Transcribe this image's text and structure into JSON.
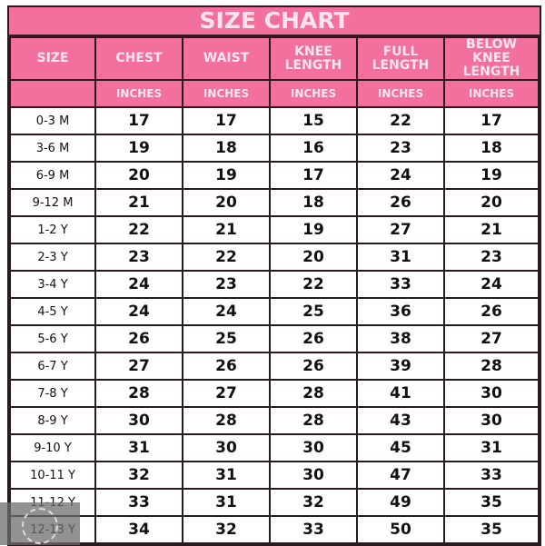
{
  "title": "SIZE CHART",
  "headers": [
    "SIZE",
    "CHEST",
    "WAIST",
    "KNEE LENGTH",
    "FULL LENGTH",
    "BELOW KNEE LENGTH"
  ],
  "units": [
    "",
    "INCHES",
    "INCHES",
    "INCHES",
    "INCHES",
    "INCHES"
  ],
  "rows": [
    [
      "0-3 M",
      "17",
      "17",
      "15",
      "22",
      "17"
    ],
    [
      "3-6 M",
      "19",
      "18",
      "16",
      "23",
      "18"
    ],
    [
      "6-9 M",
      "20",
      "19",
      "17",
      "24",
      "19"
    ],
    [
      "9-12 M",
      "21",
      "20",
      "18",
      "26",
      "20"
    ],
    [
      "1-2 Y",
      "22",
      "21",
      "19",
      "27",
      "21"
    ],
    [
      "2-3 Y",
      "23",
      "22",
      "20",
      "31",
      "23"
    ],
    [
      "3-4 Y",
      "24",
      "23",
      "22",
      "33",
      "24"
    ],
    [
      "4-5 Y",
      "24",
      "24",
      "25",
      "36",
      "26"
    ],
    [
      "5-6 Y",
      "26",
      "25",
      "26",
      "38",
      "27"
    ],
    [
      "6-7 Y",
      "27",
      "26",
      "26",
      "39",
      "28"
    ],
    [
      "7-8 Y",
      "28",
      "27",
      "28",
      "41",
      "30"
    ],
    [
      "8-9 Y",
      "30",
      "28",
      "28",
      "43",
      "30"
    ],
    [
      "9-10 Y",
      "31",
      "30",
      "30",
      "45",
      "31"
    ],
    [
      "10-11 Y",
      "32",
      "31",
      "30",
      "47",
      "33"
    ],
    [
      "11-12 Y",
      "33",
      "31",
      "32",
      "49",
      "35"
    ],
    [
      "12-13 Y",
      "34",
      "32",
      "33",
      "50",
      "35"
    ]
  ],
  "colors": {
    "header_pink": "#f26f9e",
    "border": "#2a1a1e"
  }
}
